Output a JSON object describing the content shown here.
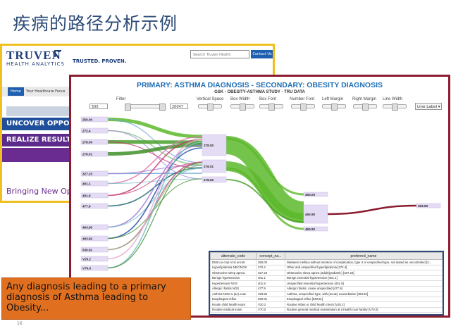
{
  "slide": {
    "title": "疾病的路径分析示例",
    "page_number": "16",
    "note": "Any diagnosis leading to a primary diagnosis of Asthma leading to Obesity..."
  },
  "truven": {
    "logo": "TRUVEN",
    "logo_sub": "HEALTH ANALYTICS",
    "tagline": "TRUSTED. PROVEN.",
    "search_placeholder": "Search Truven Health",
    "contact": "Contact Us",
    "nav_home": "Home",
    "nav_item": "Your Healthcare Focus",
    "band1": "UNCOVER OPPORTUN",
    "band2": "REALIZE RESULTS.",
    "bring": "Bringing New Oppo"
  },
  "viz": {
    "title": "PRIMARY: ASTHMA DIAGNOSIS - SECONDARY: OBESITY DIAGNOSIS",
    "subtitle": "GSK - OBESITY-ASTHMA STUDY - TRU DATA",
    "filter_label": "Filter",
    "filter_min": "500",
    "filter_max": "20047",
    "controls": [
      "Vertical Space",
      "Box Width",
      "Box Font",
      "Number Font",
      "Left Margin",
      "Right Margin",
      "Line Width"
    ],
    "dropdown": "Line Label",
    "colors": {
      "primary_flow": "#5cb82a",
      "final_flow": "#8b1c2f",
      "node_fill": "#e4dcf4",
      "title_blue": "#1f6fb5",
      "frame": "#8b1c2f",
      "truven_border": "#f0c020",
      "note_orange": "#e07020"
    }
  },
  "chart_data": {
    "type": "sankey",
    "title": "PRIMARY: ASTHMA DIAGNOSIS - SECONDARY: OBESITY DIAGNOSIS",
    "subtitle": "GSK - OBESITY-ASTHMA STUDY - TRU DATA",
    "left_nodes": [
      "250.00",
      "272.4",
      "278.00",
      "278.01",
      "327.23",
      "401.1",
      "401.9",
      "477.9",
      "493.90",
      "493.92",
      "530.81",
      "V20.2",
      "V70.0"
    ],
    "middle_nodes": [
      "278.00",
      "278.01",
      "278.02"
    ],
    "mid2_nodes": [
      "493.00",
      "493.90",
      "493.92"
    ],
    "right_nodes": [
      "493.90"
    ]
  },
  "table": {
    "headers": [
      "alternate_code",
      "concept_na...",
      "preferred_name"
    ],
    "rows": [
      [
        "DMII oo cmp nt st uncntr",
        "250.00",
        "Diabetes mellitus without mention of complication, type II or unspecified type, not stated as uncontrolled [2..."
      ],
      [
        "Hyperlipidemia NEC/NOS",
        "272.4",
        "Other and unspecified hyperlipidemia [272.4]"
      ],
      [
        "Obstructive sleep apnea",
        "327.23",
        "Obstructive sleep apnea (adult)(pediatric) [327.23]"
      ],
      [
        "Benign hypertension",
        "401.1",
        "Benign essential hypertension [401.1]"
      ],
      [
        "Hypertension NOS",
        "401.9",
        "Unspecified essential hypertension [401.9]"
      ],
      [
        "Allergic rhinitis NOS",
        "477.9",
        "Allergic rhinitis, cause unspecified [477.9]"
      ],
      [
        "Asthma NOS w (ac) exac",
        "493.92",
        "Asthma, unspecified type, with (acute) exacerbation [493.92]"
      ],
      [
        "Esophageal reflux",
        "530.81",
        "Esophageal reflux [530.81]"
      ],
      [
        "Routin child health exam",
        "V20.2",
        "Routine infant or child health check [V20.2]"
      ],
      [
        "Routine medical exam",
        "V70.0",
        "Routine general medical examination at a health care facility [V70.0]"
      ]
    ]
  }
}
